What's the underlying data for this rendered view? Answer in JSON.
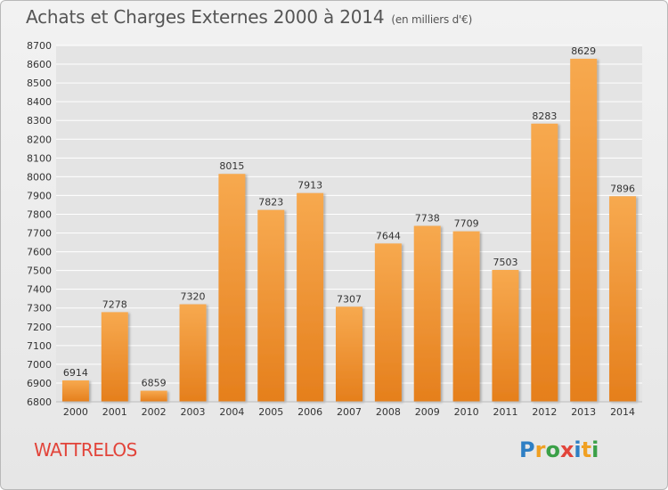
{
  "title": "Achats et Charges Externes 2000 à 2014",
  "subtitle": "(en milliers d'€)",
  "commune": "WATTRELOS",
  "logo": {
    "text": "Proxiti",
    "letters": [
      {
        "ch": "P",
        "color": "#2e7fc4"
      },
      {
        "ch": "r",
        "color": "#f0a022"
      },
      {
        "ch": "o",
        "color": "#3aa047"
      },
      {
        "ch": "x",
        "color": "#e2443a"
      },
      {
        "ch": "i",
        "color": "#2e7fc4"
      },
      {
        "ch": "t",
        "color": "#f0a022"
      },
      {
        "ch": "i",
        "color": "#3aa047"
      }
    ]
  },
  "colors": {
    "bar_light": "#f7a94f",
    "bar_dark": "#e57f1c",
    "grid": "#ffffff",
    "axis_text": "#333333"
  },
  "chart_data": {
    "type": "bar",
    "title": "Achats et Charges Externes 2000 à 2014",
    "subtitle": "(en milliers d'€)",
    "categories": [
      "2000",
      "2001",
      "2002",
      "2003",
      "2004",
      "2005",
      "2006",
      "2007",
      "2008",
      "2009",
      "2010",
      "2011",
      "2012",
      "2013",
      "2014"
    ],
    "values": [
      6914,
      7278,
      6859,
      7320,
      8015,
      7823,
      7913,
      7307,
      7644,
      7738,
      7709,
      7503,
      8283,
      8629,
      7896
    ],
    "ylim": [
      6800,
      8700
    ],
    "yticks": [
      6800,
      6900,
      7000,
      7100,
      7200,
      7300,
      7400,
      7500,
      7600,
      7700,
      7800,
      7900,
      8000,
      8100,
      8200,
      8300,
      8400,
      8500,
      8600,
      8700
    ],
    "grid": true
  }
}
